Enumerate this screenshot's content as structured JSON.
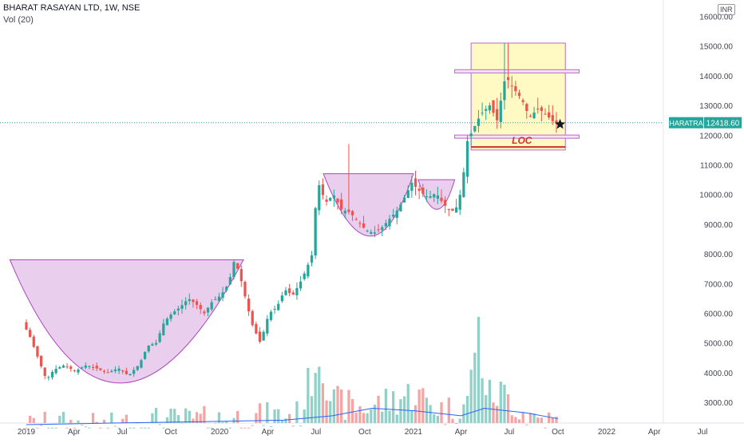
{
  "header": {
    "title": "BHARAT RASAYAN LTD, 1W, NSE",
    "volume_label": "Vol (20)",
    "currency_badge": "INR"
  },
  "price_badge": {
    "symbol": "BHARATRAS",
    "value": "12418.60"
  },
  "annotation": {
    "loc_label": "LOC"
  },
  "colors": {
    "up": "#26a69a",
    "down": "#ef5350",
    "up_volume": "#8fd0c8",
    "down_volume": "#f4a4a2",
    "pattern_fill": "#e1bee7",
    "pattern_edge": "#ab47bc",
    "box_fill": "#fff59d",
    "box_edge": "#ba68c8",
    "line_red": "#d32f2f",
    "volume_ma": "#2962ff",
    "price_line": "#26a69a"
  },
  "chart_data": {
    "type": "candlestick",
    "timeframe": "1W",
    "y_axis": {
      "ticks": [
        3000,
        4000,
        5000,
        6000,
        7000,
        8000,
        9000,
        10000,
        11000,
        12000,
        13000,
        14000,
        15000,
        16000
      ],
      "tick_labels": [
        "3000.00",
        "4000.00",
        "5000.00",
        "6000.00",
        "7000.00",
        "8000.00",
        "9000.00",
        "10000.00",
        "11000.00",
        "12000.00",
        "13000.00",
        "14000.00",
        "15000.00",
        "16000.00"
      ],
      "position": "right"
    },
    "x_axis": {
      "ticks": [
        "2019-01-01",
        "2019-04-01",
        "2019-07-01",
        "2019-10-01",
        "2020-01-01",
        "2020-04-01",
        "2020-07-01",
        "2020-10-01",
        "2021-01-01",
        "2021-04-01",
        "2021-07-01",
        "2021-10-01",
        "2022-01-01",
        "2022-04-01",
        "2022-07-01"
      ],
      "tick_labels": [
        "2019",
        "Apr",
        "Jul",
        "Oct",
        "2020",
        "Apr",
        "Jul",
        "Oct",
        "2021",
        "Apr",
        "Jul",
        "Oct",
        "2022",
        "Apr",
        "Jul"
      ]
    },
    "last_close": 12418.6,
    "path_points": [
      [
        "2019-01-01",
        5700
      ],
      [
        "2019-01-15",
        5200
      ],
      [
        "2019-02-01",
        4400
      ],
      [
        "2019-02-15",
        3750
      ],
      [
        "2019-03-01",
        4100
      ],
      [
        "2019-03-20",
        4250
      ],
      [
        "2019-04-10",
        4050
      ],
      [
        "2019-05-01",
        4250
      ],
      [
        "2019-05-20",
        4150
      ],
      [
        "2019-06-10",
        4000
      ],
      [
        "2019-07-01",
        4150
      ],
      [
        "2019-07-20",
        3900
      ],
      [
        "2019-08-10",
        4300
      ],
      [
        "2019-08-25",
        4900
      ],
      [
        "2019-09-10",
        5000
      ],
      [
        "2019-09-25",
        5700
      ],
      [
        "2019-10-10",
        6000
      ],
      [
        "2019-10-25",
        6200
      ],
      [
        "2019-11-10",
        6500
      ],
      [
        "2019-11-25",
        6300
      ],
      [
        "2019-12-10",
        6000
      ],
      [
        "2019-12-25",
        6400
      ],
      [
        "2020-01-10",
        6600
      ],
      [
        "2020-01-25",
        7000
      ],
      [
        "2020-02-05",
        7800
      ],
      [
        "2020-02-15",
        7300
      ],
      [
        "2020-03-01",
        6200
      ],
      [
        "2020-03-10",
        5600
      ],
      [
        "2020-03-25",
        5000
      ],
      [
        "2020-04-10",
        6000
      ],
      [
        "2020-04-25",
        6200
      ],
      [
        "2020-05-10",
        6800
      ],
      [
        "2020-05-25",
        6600
      ],
      [
        "2020-06-10",
        7100
      ],
      [
        "2020-06-20",
        7500
      ],
      [
        "2020-07-01",
        8000
      ],
      [
        "2020-07-08",
        9800
      ],
      [
        "2020-07-15",
        10400
      ],
      [
        "2020-07-25",
        9700
      ],
      [
        "2020-08-10",
        10000
      ],
      [
        "2020-08-25",
        9500
      ],
      [
        "2020-09-10",
        9400
      ],
      [
        "2020-09-25",
        9100
      ],
      [
        "2020-10-10",
        8800
      ],
      [
        "2020-10-25",
        8700
      ],
      [
        "2020-11-10",
        8900
      ],
      [
        "2020-11-25",
        9200
      ],
      [
        "2020-12-10",
        9500
      ],
      [
        "2020-12-25",
        10000
      ],
      [
        "2021-01-05",
        10400
      ],
      [
        "2021-01-20",
        10100
      ],
      [
        "2021-02-05",
        9900
      ],
      [
        "2021-02-20",
        10050
      ],
      [
        "2021-03-05",
        9700
      ],
      [
        "2021-03-20",
        9400
      ],
      [
        "2021-04-01",
        9600
      ],
      [
        "2021-04-10",
        10300
      ],
      [
        "2021-04-20",
        11800
      ],
      [
        "2021-05-01",
        12200
      ],
      [
        "2021-05-15",
        12700
      ],
      [
        "2021-06-01",
        13000
      ],
      [
        "2021-06-15",
        12500
      ],
      [
        "2021-07-01",
        14000
      ],
      [
        "2021-07-15",
        13600
      ],
      [
        "2021-08-01",
        13200
      ],
      [
        "2021-08-15",
        12600
      ],
      [
        "2021-09-01",
        12900
      ],
      [
        "2021-09-15",
        12700
      ],
      [
        "2021-10-01",
        12418.6
      ]
    ],
    "notable_highs": [
      [
        "2020-09-01",
        11700
      ],
      [
        "2021-06-25",
        15100
      ]
    ],
    "volume_path": [
      [
        "2019-01-01",
        2200
      ],
      [
        "2019-03-01",
        2300
      ],
      [
        "2019-06-01",
        2200
      ],
      [
        "2019-09-01",
        2400
      ],
      [
        "2019-12-01",
        2400
      ],
      [
        "2020-03-01",
        2500
      ],
      [
        "2020-06-01",
        2600
      ],
      [
        "2020-07-08",
        4800
      ],
      [
        "2020-08-01",
        3000
      ],
      [
        "2020-10-01",
        2800
      ],
      [
        "2021-01-01",
        3300
      ],
      [
        "2021-03-01",
        2700
      ],
      [
        "2021-04-15",
        3000
      ],
      [
        "2021-05-01",
        5700
      ],
      [
        "2021-05-20",
        3200
      ],
      [
        "2021-06-20",
        3300
      ],
      [
        "2021-08-01",
        2600
      ],
      [
        "2021-10-01",
        2300
      ]
    ],
    "volume_ma": [
      [
        "2019-01-01",
        2250
      ],
      [
        "2019-06-01",
        2300
      ],
      [
        "2019-12-01",
        2350
      ],
      [
        "2020-05-01",
        2400
      ],
      [
        "2020-08-01",
        2550
      ],
      [
        "2020-10-15",
        2800
      ],
      [
        "2021-01-01",
        2720
      ],
      [
        "2021-04-01",
        2550
      ],
      [
        "2021-05-15",
        2800
      ],
      [
        "2021-08-01",
        2650
      ],
      [
        "2021-10-01",
        2450
      ]
    ],
    "patterns": [
      {
        "type": "cup",
        "rim_left": [
          "2018-12-01",
          7800
        ],
        "rim_right": [
          "2020-02-15",
          7800
        ],
        "bottom": [
          "2019-06-15",
          3650
        ]
      },
      {
        "type": "cup",
        "rim_left": [
          "2020-07-15",
          10700
        ],
        "rim_right": [
          "2021-01-01",
          10700
        ],
        "bottom": [
          "2020-10-15",
          8600
        ]
      },
      {
        "type": "cup",
        "rim_left": [
          "2021-01-10",
          10500
        ],
        "rim_right": [
          "2021-03-20",
          10500
        ],
        "bottom": [
          "2021-02-15",
          9500
        ]
      }
    ],
    "horizontal_levels": [
      14150,
      11950
    ],
    "consolidation_box": {
      "from": "2021-04-20",
      "to": "2021-10-15",
      "top": 15100,
      "bottom": 11500
    },
    "loc_line": {
      "from": "2021-04-20",
      "to": "2021-10-15",
      "value": 11600
    }
  }
}
